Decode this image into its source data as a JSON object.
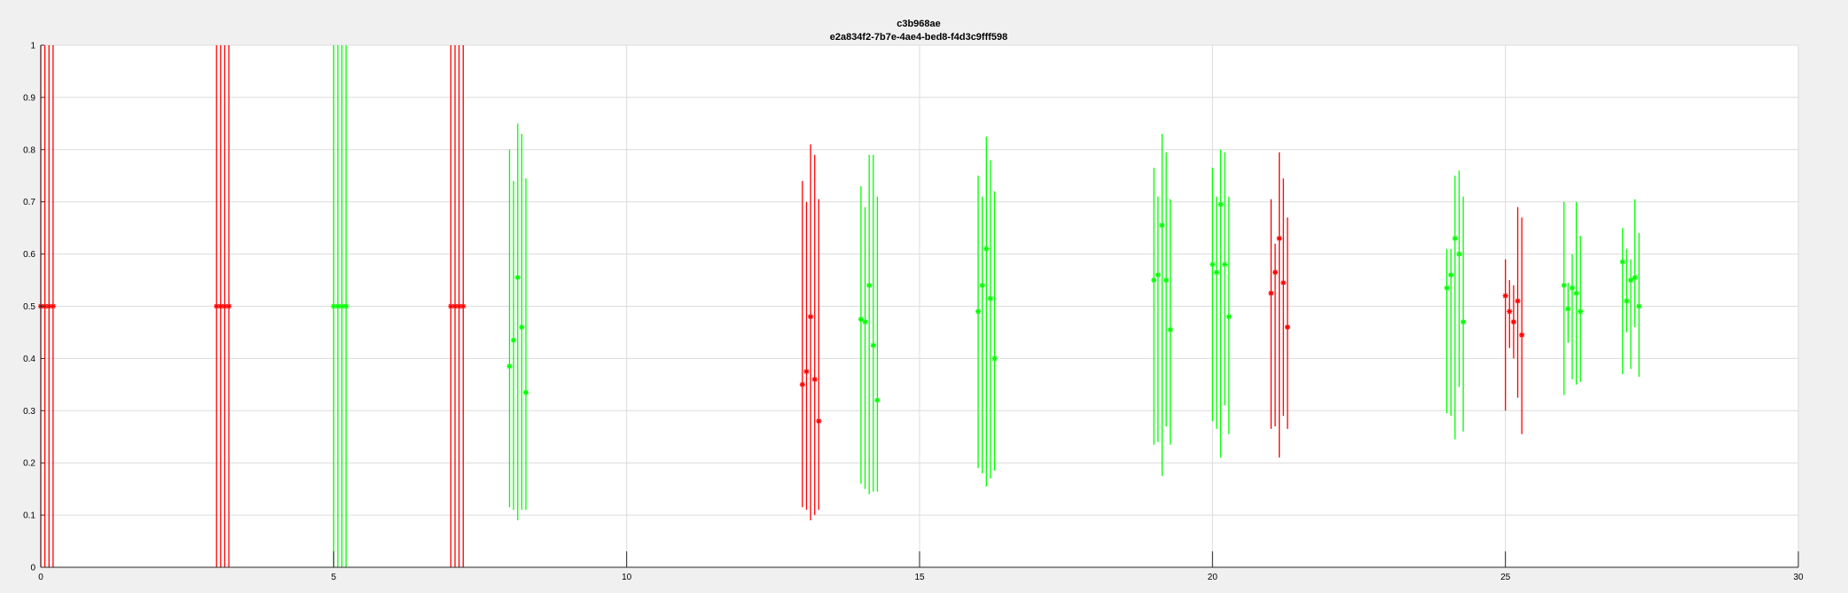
{
  "chart_data": {
    "type": "errorbar",
    "title": "c3b968ae",
    "subtitle": "e2a834f2-7b7e-4ae4-bed8-f4d3c9fff598",
    "xlabel": "",
    "ylabel": "",
    "xlim": [
      0,
      30
    ],
    "ylim": [
      0,
      1
    ],
    "xticks": [
      0,
      5,
      10,
      15,
      20,
      25,
      30
    ],
    "yticks": [
      0,
      0.1,
      0.2,
      0.3,
      0.4,
      0.5,
      0.6,
      0.7,
      0.8,
      0.9,
      1
    ],
    "grid": true,
    "colors": {
      "red": "#ff0000",
      "green": "#00ff00"
    },
    "groups": [
      {
        "color": "red",
        "points": [
          {
            "x": 0.0,
            "y": 0.5,
            "lo": 0.0,
            "hi": 1.0
          },
          {
            "x": 0.07,
            "y": 0.5,
            "lo": 0.0,
            "hi": 1.0
          },
          {
            "x": 0.14,
            "y": 0.5,
            "lo": 0.0,
            "hi": 1.0
          },
          {
            "x": 0.21,
            "y": 0.5,
            "lo": 0.0,
            "hi": 1.0
          }
        ]
      },
      {
        "color": "red",
        "points": [
          {
            "x": 3.0,
            "y": 0.5,
            "lo": 0.0,
            "hi": 1.0
          },
          {
            "x": 3.07,
            "y": 0.5,
            "lo": 0.0,
            "hi": 1.0
          },
          {
            "x": 3.14,
            "y": 0.5,
            "lo": 0.0,
            "hi": 1.0
          },
          {
            "x": 3.21,
            "y": 0.5,
            "lo": 0.0,
            "hi": 1.0
          }
        ]
      },
      {
        "color": "green",
        "points": [
          {
            "x": 5.0,
            "y": 0.5,
            "lo": 0.0,
            "hi": 1.0
          },
          {
            "x": 5.07,
            "y": 0.5,
            "lo": 0.0,
            "hi": 1.0
          },
          {
            "x": 5.14,
            "y": 0.5,
            "lo": 0.0,
            "hi": 1.0
          },
          {
            "x": 5.21,
            "y": 0.5,
            "lo": 0.0,
            "hi": 1.0
          }
        ]
      },
      {
        "color": "red",
        "points": [
          {
            "x": 7.0,
            "y": 0.5,
            "lo": 0.0,
            "hi": 1.0
          },
          {
            "x": 7.07,
            "y": 0.5,
            "lo": 0.0,
            "hi": 1.0
          },
          {
            "x": 7.14,
            "y": 0.5,
            "lo": 0.0,
            "hi": 1.0
          },
          {
            "x": 7.21,
            "y": 0.5,
            "lo": 0.0,
            "hi": 1.0
          }
        ]
      },
      {
        "color": "green",
        "points": [
          {
            "x": 8.0,
            "y": 0.385,
            "lo": 0.115,
            "hi": 0.8
          },
          {
            "x": 8.07,
            "y": 0.435,
            "lo": 0.11,
            "hi": 0.74
          },
          {
            "x": 8.14,
            "y": 0.555,
            "lo": 0.09,
            "hi": 0.85
          },
          {
            "x": 8.21,
            "y": 0.46,
            "lo": 0.11,
            "hi": 0.83
          },
          {
            "x": 8.28,
            "y": 0.335,
            "lo": 0.11,
            "hi": 0.745
          }
        ]
      },
      {
        "color": "red",
        "points": [
          {
            "x": 13.0,
            "y": 0.35,
            "lo": 0.115,
            "hi": 0.74
          },
          {
            "x": 13.07,
            "y": 0.375,
            "lo": 0.11,
            "hi": 0.7
          },
          {
            "x": 13.14,
            "y": 0.48,
            "lo": 0.09,
            "hi": 0.81
          },
          {
            "x": 13.21,
            "y": 0.36,
            "lo": 0.1,
            "hi": 0.79
          },
          {
            "x": 13.28,
            "y": 0.28,
            "lo": 0.11,
            "hi": 0.705
          }
        ]
      },
      {
        "color": "green",
        "points": [
          {
            "x": 14.0,
            "y": 0.475,
            "lo": 0.16,
            "hi": 0.73
          },
          {
            "x": 14.07,
            "y": 0.47,
            "lo": 0.15,
            "hi": 0.69
          },
          {
            "x": 14.14,
            "y": 0.54,
            "lo": 0.14,
            "hi": 0.79
          },
          {
            "x": 14.21,
            "y": 0.425,
            "lo": 0.145,
            "hi": 0.79
          },
          {
            "x": 14.28,
            "y": 0.32,
            "lo": 0.145,
            "hi": 0.71
          }
        ]
      },
      {
        "color": "green",
        "points": [
          {
            "x": 16.0,
            "y": 0.49,
            "lo": 0.19,
            "hi": 0.75
          },
          {
            "x": 16.07,
            "y": 0.54,
            "lo": 0.18,
            "hi": 0.71
          },
          {
            "x": 16.14,
            "y": 0.61,
            "lo": 0.155,
            "hi": 0.825
          },
          {
            "x": 16.21,
            "y": 0.515,
            "lo": 0.17,
            "hi": 0.78
          },
          {
            "x": 16.28,
            "y": 0.4,
            "lo": 0.185,
            "hi": 0.72
          }
        ]
      },
      {
        "color": "green",
        "points": [
          {
            "x": 19.0,
            "y": 0.55,
            "lo": 0.235,
            "hi": 0.765
          },
          {
            "x": 19.07,
            "y": 0.56,
            "lo": 0.24,
            "hi": 0.71
          },
          {
            "x": 19.14,
            "y": 0.655,
            "lo": 0.175,
            "hi": 0.83
          },
          {
            "x": 19.21,
            "y": 0.55,
            "lo": 0.27,
            "hi": 0.795
          },
          {
            "x": 19.28,
            "y": 0.455,
            "lo": 0.235,
            "hi": 0.705
          }
        ]
      },
      {
        "color": "green",
        "points": [
          {
            "x": 20.0,
            "y": 0.58,
            "lo": 0.28,
            "hi": 0.765
          },
          {
            "x": 20.07,
            "y": 0.565,
            "lo": 0.265,
            "hi": 0.71
          },
          {
            "x": 20.14,
            "y": 0.695,
            "lo": 0.21,
            "hi": 0.8
          },
          {
            "x": 20.21,
            "y": 0.58,
            "lo": 0.31,
            "hi": 0.795
          },
          {
            "x": 20.28,
            "y": 0.48,
            "lo": 0.255,
            "hi": 0.71
          }
        ]
      },
      {
        "color": "red",
        "points": [
          {
            "x": 21.0,
            "y": 0.525,
            "lo": 0.265,
            "hi": 0.705
          },
          {
            "x": 21.07,
            "y": 0.565,
            "lo": 0.27,
            "hi": 0.62
          },
          {
            "x": 21.14,
            "y": 0.63,
            "lo": 0.21,
            "hi": 0.795
          },
          {
            "x": 21.21,
            "y": 0.545,
            "lo": 0.29,
            "hi": 0.745
          },
          {
            "x": 21.28,
            "y": 0.46,
            "lo": 0.265,
            "hi": 0.67
          }
        ]
      },
      {
        "color": "green",
        "points": [
          {
            "x": 24.0,
            "y": 0.535,
            "lo": 0.295,
            "hi": 0.61
          },
          {
            "x": 24.07,
            "y": 0.56,
            "lo": 0.29,
            "hi": 0.61
          },
          {
            "x": 24.14,
            "y": 0.63,
            "lo": 0.245,
            "hi": 0.75
          },
          {
            "x": 24.21,
            "y": 0.6,
            "lo": 0.345,
            "hi": 0.76
          },
          {
            "x": 24.28,
            "y": 0.47,
            "lo": 0.26,
            "hi": 0.71
          }
        ]
      },
      {
        "color": "red",
        "points": [
          {
            "x": 25.0,
            "y": 0.52,
            "lo": 0.3,
            "hi": 0.59
          },
          {
            "x": 25.07,
            "y": 0.49,
            "lo": 0.42,
            "hi": 0.55
          },
          {
            "x": 25.14,
            "y": 0.47,
            "lo": 0.4,
            "hi": 0.54
          },
          {
            "x": 25.21,
            "y": 0.51,
            "lo": 0.325,
            "hi": 0.69
          },
          {
            "x": 25.28,
            "y": 0.445,
            "lo": 0.255,
            "hi": 0.67
          }
        ]
      },
      {
        "color": "green",
        "points": [
          {
            "x": 26.0,
            "y": 0.54,
            "lo": 0.33,
            "hi": 0.7
          },
          {
            "x": 26.07,
            "y": 0.495,
            "lo": 0.43,
            "hi": 0.545
          },
          {
            "x": 26.14,
            "y": 0.535,
            "lo": 0.36,
            "hi": 0.6
          },
          {
            "x": 26.21,
            "y": 0.525,
            "lo": 0.35,
            "hi": 0.7
          },
          {
            "x": 26.28,
            "y": 0.49,
            "lo": 0.355,
            "hi": 0.635
          }
        ]
      },
      {
        "color": "green",
        "points": [
          {
            "x": 27.0,
            "y": 0.585,
            "lo": 0.37,
            "hi": 0.65
          },
          {
            "x": 27.07,
            "y": 0.51,
            "lo": 0.45,
            "hi": 0.61
          },
          {
            "x": 27.14,
            "y": 0.55,
            "lo": 0.38,
            "hi": 0.59
          },
          {
            "x": 27.21,
            "y": 0.555,
            "lo": 0.46,
            "hi": 0.705
          },
          {
            "x": 27.28,
            "y": 0.5,
            "lo": 0.365,
            "hi": 0.64
          }
        ]
      }
    ]
  }
}
